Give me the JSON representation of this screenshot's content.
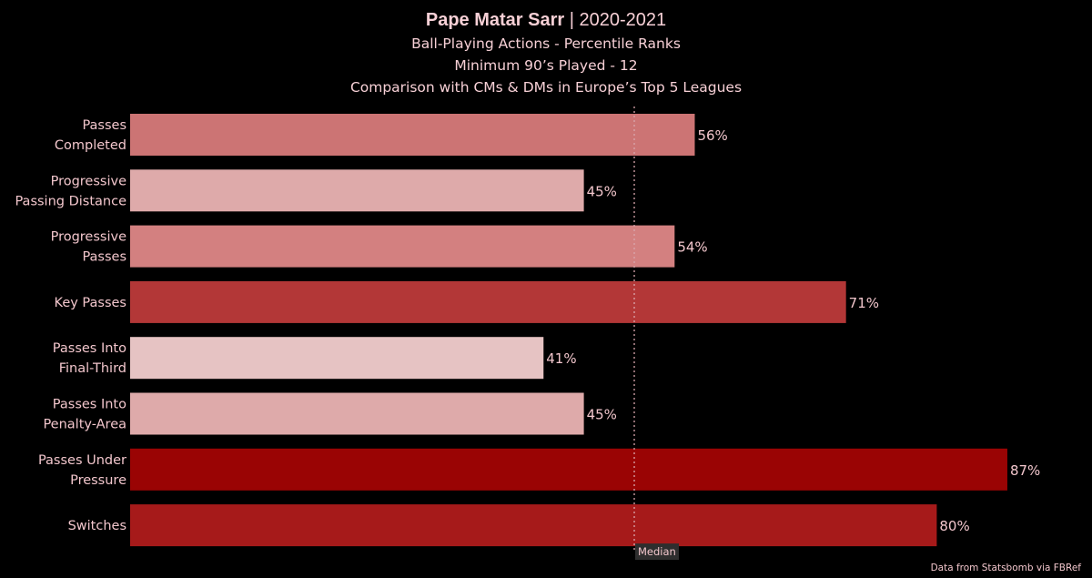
{
  "header": {
    "player": "Pape Matar Sarr",
    "separator": " | ",
    "season": "2020-2021",
    "subtitle_1": "Ball-Playing Actions - Percentile Ranks",
    "subtitle_2": "Minimum 90’s Played - 12",
    "subtitle_3": "Comparison with CMs & DMs in Europe’s Top 5 Leagues"
  },
  "footer": {
    "source": "Data from Statsbomb via FBRef"
  },
  "chart_data": {
    "type": "bar",
    "orientation": "horizontal",
    "categories": [
      [
        "Passes",
        "Completed"
      ],
      [
        "Progressive",
        "Passing Distance"
      ],
      [
        "Progressive",
        "Passes"
      ],
      [
        "Key Passes"
      ],
      [
        "Passes Into",
        "Final-Third"
      ],
      [
        "Passes Into",
        "Penalty-Area"
      ],
      [
        "Passes Under",
        "Pressure"
      ],
      [
        "Switches"
      ]
    ],
    "values": [
      56,
      45,
      54,
      71,
      41,
      45,
      87,
      80
    ],
    "value_suffix": "%",
    "bar_colors": [
      "#cc7474",
      "#deaaaa",
      "#d38080",
      "#b33737",
      "#e6c3c3",
      "#deaaaa",
      "#9a0404",
      "#a61a1a"
    ],
    "median": 50,
    "median_label": "Median",
    "xlim": [
      0,
      100
    ],
    "grid": false,
    "legend": "none"
  }
}
